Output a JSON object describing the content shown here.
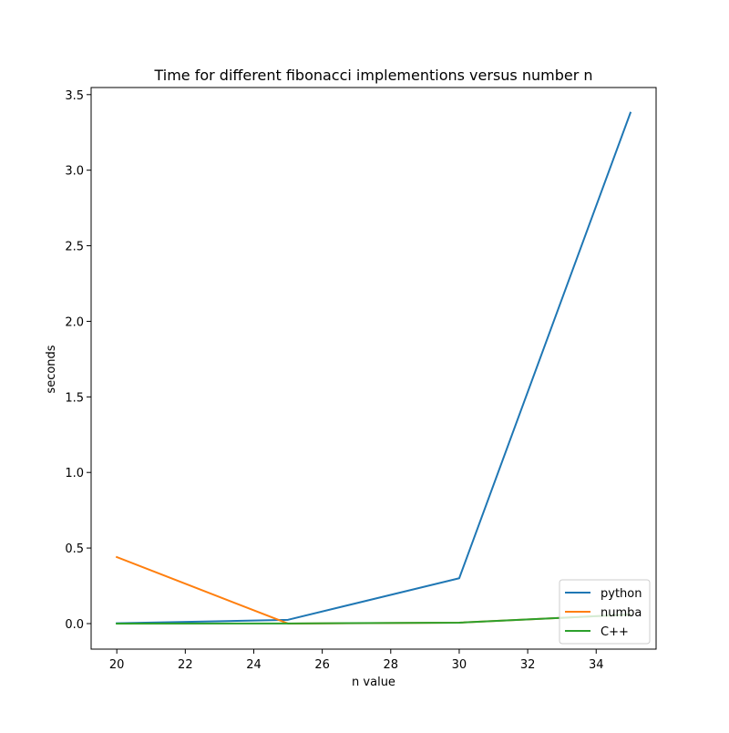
{
  "chart_data": {
    "type": "line",
    "title": "Time for different fibonacci implementions versus number n",
    "xlabel": "n value",
    "ylabel": "seconds",
    "x": [
      20,
      25,
      30,
      35
    ],
    "xlim": [
      19.25,
      35.75
    ],
    "ylim": [
      -0.169,
      3.547
    ],
    "xticks": [
      20,
      22,
      24,
      26,
      28,
      30,
      32,
      34
    ],
    "yticks": [
      0.0,
      0.5,
      1.0,
      1.5,
      2.0,
      2.5,
      3.0,
      3.5
    ],
    "xtick_labels": [
      "20",
      "22",
      "24",
      "26",
      "28",
      "30",
      "32",
      "34"
    ],
    "ytick_labels": [
      "0.0",
      "0.5",
      "1.0",
      "1.5",
      "2.0",
      "2.5",
      "3.0",
      "3.5"
    ],
    "grid": false,
    "legend_position": "lower right",
    "series": [
      {
        "name": "python",
        "color": "#1f77b4",
        "values": [
          0.002,
          0.025,
          0.3,
          3.38
        ]
      },
      {
        "name": "numba",
        "color": "#ff7f0e",
        "values": [
          0.44,
          0.0,
          0.006,
          0.06
        ]
      },
      {
        "name": "C++",
        "color": "#2ca02c",
        "values": [
          0.0,
          0.001,
          0.006,
          0.06
        ]
      }
    ]
  }
}
